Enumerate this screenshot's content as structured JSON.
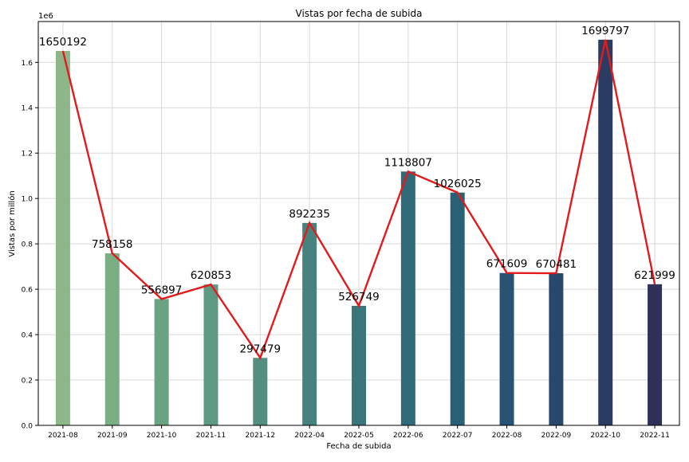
{
  "chart_data": {
    "type": "bar",
    "title": "Vistas por fecha de subida",
    "xlabel": "Fecha de subida",
    "ylabel": "Vistas por millón",
    "y_multiplier_label": "1e6",
    "categories": [
      "2021-08",
      "2021-09",
      "2021-10",
      "2021-11",
      "2021-12",
      "2022-04",
      "2022-05",
      "2022-06",
      "2022-07",
      "2022-08",
      "2022-09",
      "2022-10",
      "2022-11"
    ],
    "values": [
      1650192,
      758158,
      556897,
      620853,
      297479,
      892235,
      526749,
      1118807,
      1026025,
      671609,
      670481,
      1699797,
      621999
    ],
    "data_labels": [
      "1650192",
      "758158",
      "556897",
      "620853",
      "297479",
      "892235",
      "526749",
      "1118807",
      "1026025",
      "671609",
      "670481",
      "1699797",
      "621999"
    ],
    "y_ticks": [
      0.0,
      0.2,
      0.4,
      0.6,
      0.8,
      1.0,
      1.2,
      1.4,
      1.6
    ],
    "y_tick_labels": [
      "0.0",
      "0.2",
      "0.4",
      "0.6",
      "0.8",
      "1.0",
      "1.2",
      "1.4",
      "1.6"
    ],
    "ylim": [
      0,
      1780000
    ],
    "grid": true,
    "overlay_line": {
      "type": "line",
      "color": "#e31a1c"
    },
    "bar_colors": [
      "#8db788",
      "#7aae85",
      "#6aa382",
      "#5e9a82",
      "#528f80",
      "#46837e",
      "#3b767b",
      "#316b7a",
      "#2a6077",
      "#265472",
      "#27476b",
      "#2b3c62",
      "#2f3158"
    ]
  }
}
